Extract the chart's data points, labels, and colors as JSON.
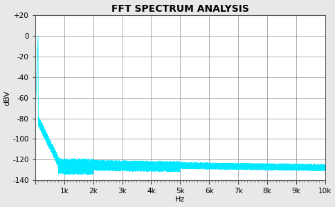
{
  "title": "FFT SPECTRUM ANALYSIS",
  "xlabel": "Hz",
  "ylabel": "dBV",
  "xlim": [
    0,
    10000
  ],
  "ylim": [
    -140,
    20
  ],
  "yticks": [
    20,
    0,
    -20,
    -40,
    -60,
    -80,
    -100,
    -120,
    -140
  ],
  "ytick_labels": [
    "+20",
    "0",
    "-20",
    "-40",
    "-60",
    "-80",
    "-100",
    "-120",
    "-140"
  ],
  "xticks": [
    0,
    1000,
    2000,
    3000,
    4000,
    5000,
    6000,
    7000,
    8000,
    9000,
    10000
  ],
  "xtick_labels": [
    "",
    "1k",
    "2k",
    "3k",
    "4k",
    "5k",
    "6k",
    "7k",
    "8k",
    "9k",
    "10k"
  ],
  "line_color": "#00E8FF",
  "background_color": "#E8E8E8",
  "plot_bg_color": "#FFFFFF",
  "grid_color": "#888888",
  "title_fontsize": 10,
  "label_fontsize": 8,
  "tick_fontsize": 7.5,
  "fs": 10000,
  "f_signal": 100,
  "noise_floor_base": -122,
  "noise_floor_low_bump": -100,
  "noise_floor_high_end": -130,
  "seed": 42
}
